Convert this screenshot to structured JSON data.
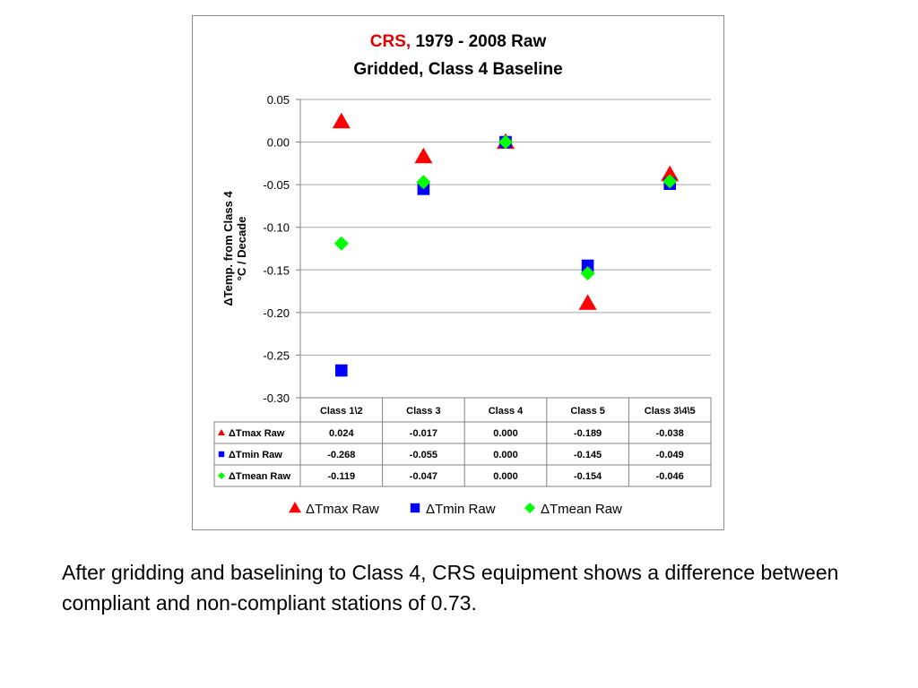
{
  "chart_data": {
    "type": "scatter",
    "title": {
      "line1_highlight": "CRS,",
      "line1_rest": "1979 - 2008 Raw",
      "line2": "Gridded, Class 4 Baseline"
    },
    "ylabel": [
      "ΔTemp. from Class 4",
      "°C / Decade"
    ],
    "categories": [
      "Class 1\\2",
      "Class 3",
      "Class 4",
      "Class 5",
      "Class 3\\4\\5"
    ],
    "ylim": [
      -0.3,
      0.05
    ],
    "yticks": [
      0.05,
      0.0,
      -0.05,
      -0.1,
      -0.15,
      -0.2,
      -0.25,
      -0.3
    ],
    "ytick_labels": [
      "0.05",
      "0.00",
      "-0.05",
      "-0.10",
      "-0.15",
      "-0.20",
      "-0.25",
      "-0.30"
    ],
    "grid": true,
    "legend_position": "bottom",
    "series": [
      {
        "name": "ΔTmax Raw",
        "marker": "triangle",
        "color": "#ff0000",
        "values": [
          0.024,
          -0.017,
          0.0,
          -0.189,
          -0.038
        ],
        "labels": [
          "0.024",
          "-0.017",
          "0.000",
          "-0.189",
          "-0.038"
        ]
      },
      {
        "name": "ΔTmin Raw",
        "marker": "square",
        "color": "#0000ff",
        "values": [
          -0.268,
          -0.055,
          0.0,
          -0.145,
          -0.049
        ],
        "labels": [
          "-0.268",
          "-0.055",
          "0.000",
          "-0.145",
          "-0.049"
        ]
      },
      {
        "name": "ΔTmean Raw",
        "marker": "diamond",
        "color": "#00ff00",
        "values": [
          -0.119,
          -0.047,
          0.0,
          -0.154,
          -0.046
        ],
        "labels": [
          "-0.119",
          "-0.047",
          "0.000",
          "-0.154",
          "-0.046"
        ]
      }
    ]
  },
  "caption": "After gridding and baselining to Class 4, CRS equipment shows a difference between compliant and non-compliant stations of 0.73."
}
